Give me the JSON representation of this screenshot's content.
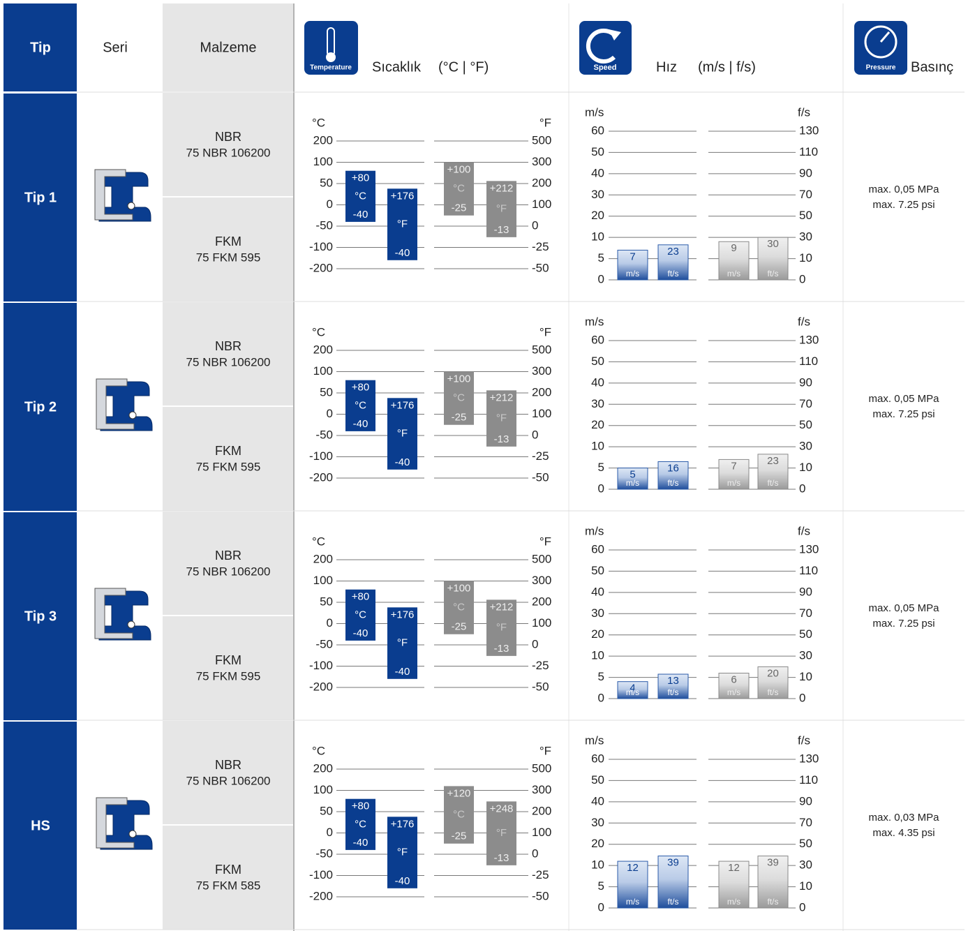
{
  "header": {
    "tip": "Tip",
    "seri": "Seri",
    "malzeme": "Malzeme",
    "temperature": {
      "icon_label": "Temperature",
      "title": "Sıcaklık",
      "unit": "(°C | °F)"
    },
    "speed": {
      "icon_label": "Speed",
      "title": "Hız",
      "unit": "(m/s | f/s)"
    },
    "pressure": {
      "icon_label": "Pressure",
      "title": "Basınç"
    }
  },
  "temperature_axis": {
    "left_unit": "°C",
    "right_unit": "°F",
    "left_ticks": [
      200,
      100,
      50,
      0,
      -50,
      -100,
      -200
    ],
    "right_ticks": [
      500,
      300,
      200,
      100,
      0,
      -25,
      -50
    ]
  },
  "speed_axis": {
    "left_unit": "m/s",
    "right_unit": "f/s",
    "left_ticks": [
      60,
      50,
      40,
      30,
      20,
      10,
      5,
      0
    ],
    "right_ticks": [
      130,
      110,
      90,
      70,
      50,
      30,
      10,
      0
    ]
  },
  "rows": [
    {
      "tip": "Tip 1",
      "materials": [
        {
          "name": "NBR",
          "code": "75 NBR 106200",
          "celsius": {
            "max": {
              "value": 80,
              "label": "+80"
            },
            "min": -40,
            "unit": "°C"
          },
          "fahrenheit": {
            "max": {
              "value": 176,
              "label": "+176"
            },
            "min": -40,
            "unit": "°F"
          },
          "speed": {
            "ms": {
              "value": 7,
              "unit": "m/s"
            },
            "fts": {
              "value": 23,
              "unit": "ft/s"
            }
          }
        },
        {
          "name": "FKM",
          "code": "75 FKM 595",
          "celsius": {
            "max": {
              "value": 100,
              "label": "+100"
            },
            "min": -25,
            "unit": "°C"
          },
          "fahrenheit": {
            "max": {
              "value": 212,
              "label": "+212"
            },
            "min": -13,
            "unit": "°F"
          },
          "speed": {
            "ms": {
              "value": 9,
              "unit": "m/s"
            },
            "fts": {
              "value": 30,
              "unit": "ft/s"
            }
          }
        }
      ],
      "pressure": [
        "max. 0,05 MPa",
        "max. 7.25 psi"
      ]
    },
    {
      "tip": "Tip 2",
      "materials": [
        {
          "name": "NBR",
          "code": "75 NBR 106200",
          "celsius": {
            "max": {
              "value": 80,
              "label": "+80"
            },
            "min": -40,
            "unit": "°C"
          },
          "fahrenheit": {
            "max": {
              "value": 176,
              "label": "+176"
            },
            "min": -40,
            "unit": "°F"
          },
          "speed": {
            "ms": {
              "value": 5,
              "unit": "m/s"
            },
            "fts": {
              "value": 16,
              "unit": "ft/s"
            }
          }
        },
        {
          "name": "FKM",
          "code": "75 FKM 595",
          "celsius": {
            "max": {
              "value": 100,
              "label": "+100"
            },
            "min": -25,
            "unit": "°C"
          },
          "fahrenheit": {
            "max": {
              "value": 212,
              "label": "+212"
            },
            "min": -13,
            "unit": "°F"
          },
          "speed": {
            "ms": {
              "value": 7,
              "unit": "m/s"
            },
            "fts": {
              "value": 23,
              "unit": "ft/s"
            }
          }
        }
      ],
      "pressure": [
        "max. 0,05 MPa",
        "max. 7.25 psi"
      ]
    },
    {
      "tip": "Tip 3",
      "materials": [
        {
          "name": "NBR",
          "code": "75 NBR 106200",
          "celsius": {
            "max": {
              "value": 80,
              "label": "+80"
            },
            "min": -40,
            "unit": "°C"
          },
          "fahrenheit": {
            "max": {
              "value": 176,
              "label": "+176"
            },
            "min": -40,
            "unit": "°F"
          },
          "speed": {
            "ms": {
              "value": 4,
              "unit": "m/s"
            },
            "fts": {
              "value": 13,
              "unit": "ft/s"
            }
          }
        },
        {
          "name": "FKM",
          "code": "75 FKM 595",
          "celsius": {
            "max": {
              "value": 100,
              "label": "+100"
            },
            "min": -25,
            "unit": "°C"
          },
          "fahrenheit": {
            "max": {
              "value": 212,
              "label": "+212"
            },
            "min": -13,
            "unit": "°F"
          },
          "speed": {
            "ms": {
              "value": 6,
              "unit": "m/s"
            },
            "fts": {
              "value": 20,
              "unit": "ft/s"
            }
          }
        }
      ],
      "pressure": [
        "max. 0,05 MPa",
        "max. 7.25 psi"
      ]
    },
    {
      "tip": "HS",
      "materials": [
        {
          "name": "NBR",
          "code": "75 NBR 106200",
          "celsius": {
            "max": {
              "value": 80,
              "label": "+80"
            },
            "min": -40,
            "unit": "°C"
          },
          "fahrenheit": {
            "max": {
              "value": 176,
              "label": "+176"
            },
            "min": -40,
            "unit": "°F"
          },
          "speed": {
            "ms": {
              "value": 12,
              "unit": "m/s"
            },
            "fts": {
              "value": 39,
              "unit": "ft/s"
            }
          }
        },
        {
          "name": "FKM",
          "code": "75 FKM 585",
          "celsius": {
            "max": {
              "value": 120,
              "label": "+120"
            },
            "min": -25,
            "unit": "°C"
          },
          "fahrenheit": {
            "max": {
              "value": 248,
              "label": "+248"
            },
            "min": -13,
            "unit": "°F"
          },
          "speed": {
            "ms": {
              "value": 12,
              "unit": "m/s"
            },
            "fts": {
              "value": 39,
              "unit": "ft/s"
            }
          }
        }
      ],
      "pressure": [
        "max. 0,03 MPa",
        "max. 4.35 psi"
      ]
    }
  ]
}
